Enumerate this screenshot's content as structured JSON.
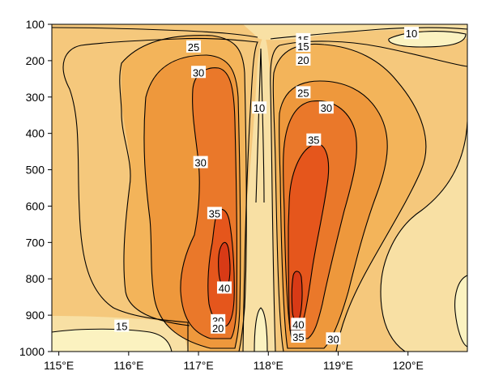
{
  "chart_data": {
    "type": "contour",
    "title": "",
    "xlabel": "",
    "ylabel": "",
    "x_ticks": [
      "115°E",
      "116°E",
      "117°E",
      "118°E",
      "119°E",
      "120°E"
    ],
    "y_ticks": [
      "100",
      "200",
      "300",
      "400",
      "500",
      "600",
      "700",
      "800",
      "900",
      "1000"
    ],
    "xlim": [
      114.9,
      120.85
    ],
    "ylim": [
      100,
      1000
    ],
    "y_inverted": true,
    "contour_levels": [
      10,
      15,
      20,
      25,
      30,
      35,
      40
    ],
    "fill_colors": {
      "below_10": "#fbf2c0",
      "10_to_15": "#f8e0a4",
      "15_to_20": "#f5c87c",
      "20_to_25": "#f3b45a",
      "25_to_30": "#ee983c",
      "30_to_35": "#ea782a",
      "35_to_40": "#e5561c",
      "above_40": "#d83a16"
    },
    "contour_labels": [
      {
        "text": "10",
        "lon": 120.05,
        "p": 125
      },
      {
        "text": "15",
        "lon": 118.5,
        "p": 142
      },
      {
        "text": "15",
        "lon": 118.5,
        "p": 160
      },
      {
        "text": "20",
        "lon": 118.5,
        "p": 198
      },
      {
        "text": "25",
        "lon": 116.93,
        "p": 162
      },
      {
        "text": "25",
        "lon": 118.5,
        "p": 288
      },
      {
        "text": "30",
        "lon": 117.0,
        "p": 232
      },
      {
        "text": "30",
        "lon": 118.83,
        "p": 330
      },
      {
        "text": "10",
        "lon": 117.87,
        "p": 330
      },
      {
        "text": "35",
        "lon": 118.65,
        "p": 418
      },
      {
        "text": "30",
        "lon": 117.03,
        "p": 480
      },
      {
        "text": "35",
        "lon": 117.23,
        "p": 620
      },
      {
        "text": "40",
        "lon": 117.37,
        "p": 825
      },
      {
        "text": "30",
        "lon": 117.28,
        "p": 915
      },
      {
        "text": "20",
        "lon": 117.28,
        "p": 935
      },
      {
        "text": "15",
        "lon": 115.9,
        "p": 930
      },
      {
        "text": "40",
        "lon": 118.43,
        "p": 925
      },
      {
        "text": "35",
        "lon": 118.43,
        "p": 960
      },
      {
        "text": "30",
        "lon": 118.93,
        "p": 965
      }
    ]
  }
}
